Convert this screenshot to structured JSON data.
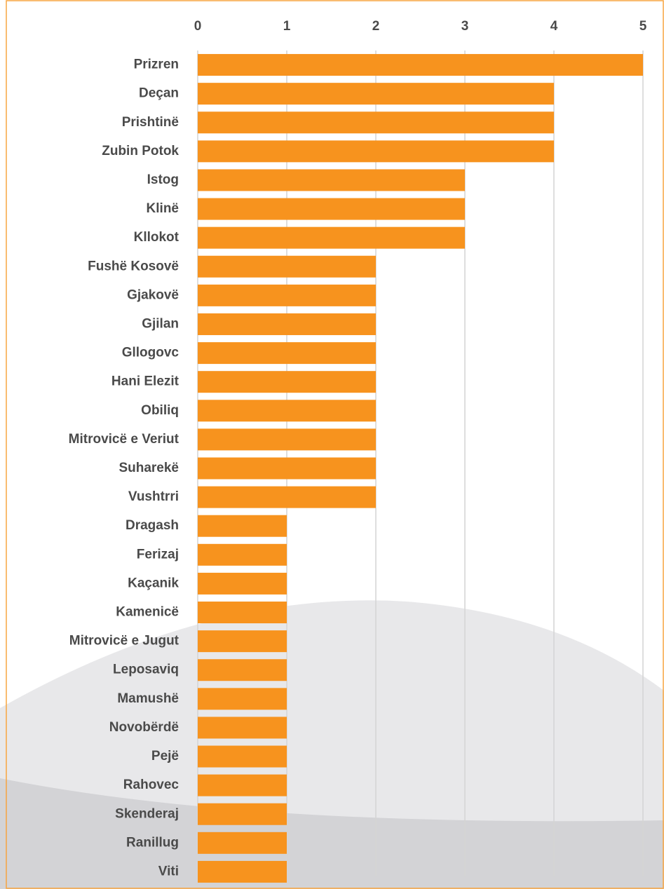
{
  "chart_data": {
    "type": "bar",
    "orientation": "horizontal",
    "categories": [
      "Prizren",
      "Deçan",
      "Prishtinë",
      "Zubin Potok",
      "Istog",
      "Klinë",
      "Kllokot",
      "Fushë Kosovë",
      "Gjakovë",
      "Gjilan",
      "Gllogovc",
      "Hani Elezit",
      "Obiliq",
      "Mitrovicë e Veriut",
      "Suharekë",
      "Vushtrri",
      "Dragash",
      "Ferizaj",
      "Kaçanik",
      "Kamenicë",
      "Mitrovicë e Jugut",
      "Leposaviq",
      "Mamushë",
      "Novobërdë",
      "Pejë",
      "Rahovec",
      "Skenderaj",
      "Ranillug",
      "Viti"
    ],
    "values": [
      5,
      4,
      4,
      4,
      3,
      3,
      3,
      2,
      2,
      2,
      2,
      2,
      2,
      2,
      2,
      2,
      1,
      1,
      1,
      1,
      1,
      1,
      1,
      1,
      1,
      1,
      1,
      1,
      1
    ],
    "color": "#f7931e",
    "xlim": [
      0,
      5
    ],
    "xticks": [
      0,
      1,
      2,
      3,
      4,
      5
    ],
    "grid": true
  }
}
